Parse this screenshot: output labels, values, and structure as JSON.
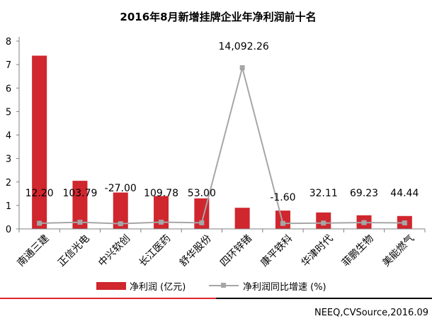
{
  "chart_data": {
    "type": "bar",
    "title": "2016年8月新增挂牌企业年净利润前十名",
    "categories": [
      "南通三建",
      "正信光电",
      "中兴软创",
      "长江医药",
      "舒华股份",
      "四环锌锗",
      "康平铁科",
      "华津时代",
      "菲鹏生物",
      "美能燃气"
    ],
    "ylim": [
      0,
      8
    ],
    "yticks": [
      "0",
      "1",
      "2",
      "3",
      "4",
      "5",
      "6",
      "7",
      "8"
    ],
    "grid": false,
    "legend_position": "bottom",
    "series": [
      {
        "name": "净利润 (亿元)",
        "type": "bar",
        "color": "#d0262e",
        "values": [
          7.38,
          2.05,
          1.55,
          1.4,
          1.3,
          0.9,
          0.78,
          0.7,
          0.58,
          0.55
        ]
      },
      {
        "name": "净利润同比增速 (%)",
        "type": "line",
        "color": "#a6a6a6",
        "values": [
          12.2,
          103.79,
          -27.0,
          109.78,
          53.0,
          14092.26,
          -1.6,
          32.11,
          69.23,
          44.44
        ],
        "labels": [
          "12.20",
          "103.79",
          "-27.00",
          "109.78",
          "53.00",
          "14,092.26",
          "-1.60",
          "32.11",
          "69.23",
          "44.44"
        ]
      }
    ]
  },
  "source": "NEEQ,CVSource,2016.09",
  "colors": {
    "footer_red": "#e0262e",
    "footer_black": "#000000",
    "axis": "#808080"
  }
}
